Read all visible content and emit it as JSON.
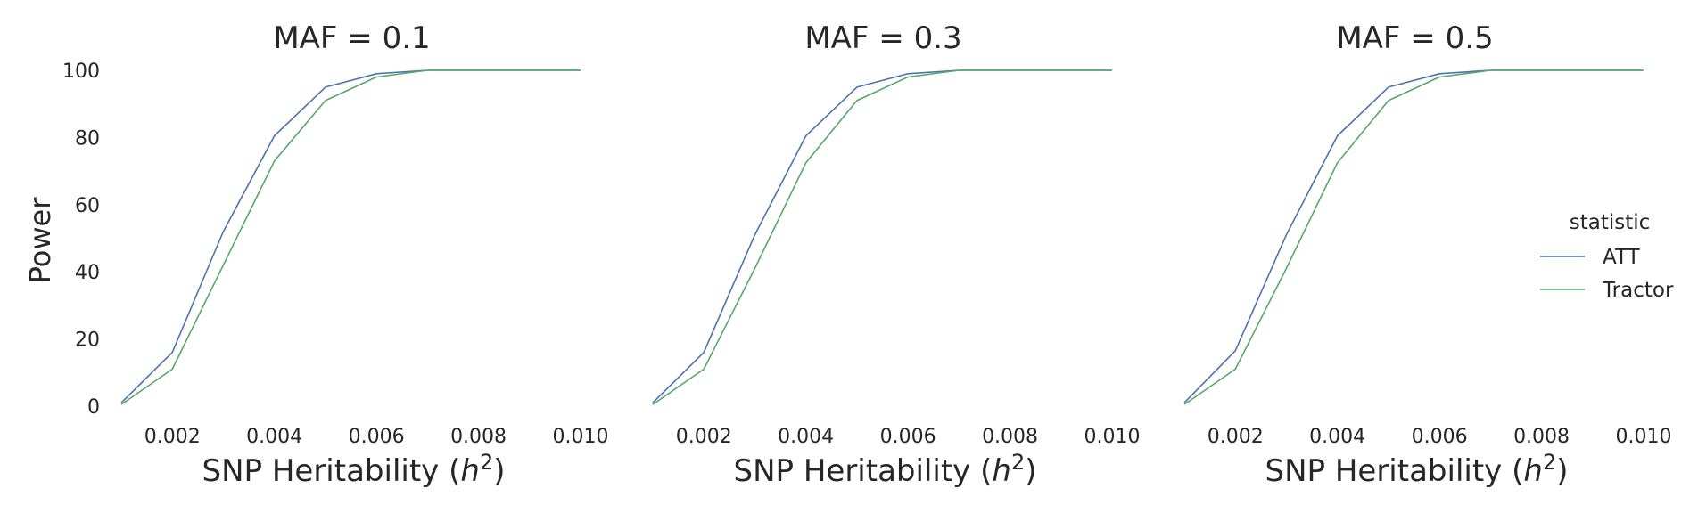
{
  "figure": {
    "ylabel": "Power",
    "xlabel_prefix": "SNP Heritability (",
    "xlabel_var": "h",
    "xlabel_sup": "2",
    "xlabel_suffix": ")"
  },
  "legend": {
    "title": "statistic",
    "entries": [
      {
        "label": "ATT",
        "color": "#4c72b0"
      },
      {
        "label": "Tractor",
        "color": "#55a868"
      }
    ]
  },
  "chart_data": [
    {
      "type": "line",
      "title": "MAF = 0.1",
      "x": [
        0.001,
        0.002,
        0.003,
        0.004,
        0.005,
        0.006,
        0.007,
        0.008,
        0.009,
        0.01
      ],
      "xticks": [
        "0.002",
        "0.004",
        "0.006",
        "0.008",
        "0.010"
      ],
      "yticks": [
        "0",
        "20",
        "40",
        "60",
        "80",
        "100"
      ],
      "xlim": [
        0.001,
        0.01
      ],
      "ylim": [
        0,
        100
      ],
      "series": [
        {
          "name": "ATT",
          "values": [
            1,
            16,
            52,
            80.5,
            95,
            99,
            100,
            100,
            100,
            100
          ]
        },
        {
          "name": "Tractor",
          "values": [
            0.5,
            11,
            42,
            73,
            91,
            98,
            100,
            100,
            100,
            100
          ]
        }
      ]
    },
    {
      "type": "line",
      "title": "MAF = 0.3",
      "x": [
        0.001,
        0.002,
        0.003,
        0.004,
        0.005,
        0.006,
        0.007,
        0.008,
        0.009,
        0.01
      ],
      "xticks": [
        "0.002",
        "0.004",
        "0.006",
        "0.008",
        "0.010"
      ],
      "xlim": [
        0.001,
        0.01
      ],
      "ylim": [
        0,
        100
      ],
      "series": [
        {
          "name": "ATT",
          "values": [
            1,
            16,
            51,
            80.5,
            95,
            99,
            100,
            100,
            100,
            100
          ]
        },
        {
          "name": "Tractor",
          "values": [
            0.5,
            11,
            41,
            72.5,
            91,
            98,
            100,
            100,
            100,
            100
          ]
        }
      ]
    },
    {
      "type": "line",
      "title": "MAF = 0.5",
      "x": [
        0.001,
        0.002,
        0.003,
        0.004,
        0.005,
        0.006,
        0.007,
        0.008,
        0.009,
        0.01
      ],
      "xticks": [
        "0.002",
        "0.004",
        "0.006",
        "0.008",
        "0.010"
      ],
      "xlim": [
        0.001,
        0.01
      ],
      "ylim": [
        0,
        100
      ],
      "series": [
        {
          "name": "ATT",
          "values": [
            1,
            16.5,
            51,
            80.5,
            95,
            99,
            100,
            100,
            100,
            100
          ]
        },
        {
          "name": "Tractor",
          "values": [
            0.5,
            11,
            41,
            72.5,
            91,
            98,
            100,
            100,
            100,
            100
          ]
        }
      ]
    }
  ]
}
